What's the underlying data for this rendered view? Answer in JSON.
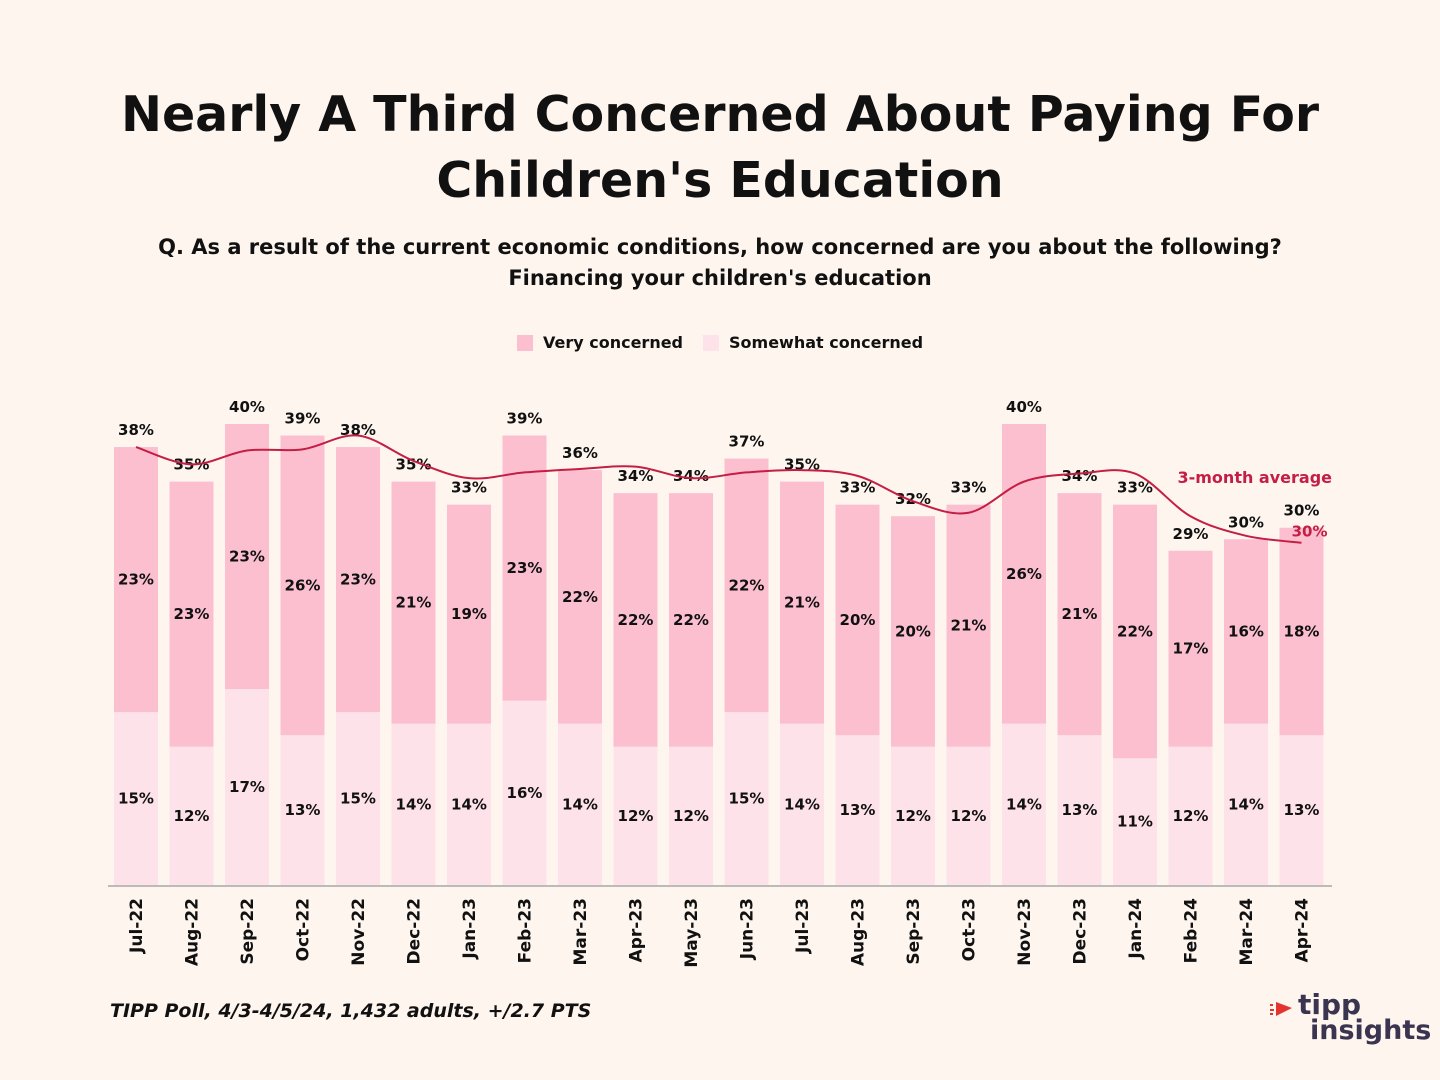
{
  "title_line1": "Nearly A Third Concerned About Paying For",
  "title_line2": "Children's Education",
  "question_line1": "Q. As a result of the current economic conditions, how concerned are you about the following?",
  "question_line2": "Financing your children's education",
  "footer": "TIPP Poll, 4/3-4/5/24, 1,432 adults, +/2.7 PTS",
  "logo": {
    "line1": "tipp",
    "line2": "insights"
  },
  "colors": {
    "very": "#fbbfd0",
    "somewhat": "#fde2ea",
    "line": "#c41e44",
    "text": "#111111",
    "axis": "#bbbbbb"
  },
  "chart_data": {
    "type": "bar",
    "stacked": true,
    "categories": [
      "Jul-22",
      "Aug-22",
      "Sep-22",
      "Oct-22",
      "Nov-22",
      "Dec-22",
      "Jan-23",
      "Feb-23",
      "Mar-23",
      "Apr-23",
      "May-23",
      "Jun-23",
      "Jul-23",
      "Aug-23",
      "Sep-23",
      "Oct-23",
      "Nov-23",
      "Dec-23",
      "Jan-24",
      "Feb-24",
      "Mar-24",
      "Apr-24"
    ],
    "series": [
      {
        "name": "Somewhat concerned",
        "values": [
          15,
          12,
          17,
          13,
          15,
          14,
          14,
          16,
          14,
          12,
          12,
          15,
          14,
          13,
          12,
          12,
          14,
          13,
          11,
          12,
          14,
          13
        ],
        "labels": [
          "15%",
          "12%",
          "17%",
          "13%",
          "15%",
          "14%",
          "14%",
          "16%",
          "14%",
          "12%",
          "12%",
          "15%",
          "14%",
          "13%",
          "12%",
          "12%",
          "14%",
          "13%",
          "11%",
          "12%",
          "14%",
          "13%"
        ]
      },
      {
        "name": "Very concerned",
        "values": [
          23,
          23,
          23,
          26,
          23,
          21,
          19,
          23,
          22,
          22,
          22,
          22,
          21,
          20,
          20,
          21,
          26,
          21,
          22,
          17,
          16,
          18
        ],
        "labels": [
          "23%",
          "23%",
          "23%",
          "26%",
          "23%",
          "21%",
          "19%",
          "23%",
          "22%",
          "22%",
          "22%",
          "22%",
          "21%",
          "20%",
          "20%",
          "21%",
          "26%",
          "21%",
          "22%",
          "17%",
          "16%",
          "18%"
        ]
      }
    ],
    "totals": [
      38,
      35,
      40,
      39,
      38,
      35,
      33,
      39,
      36,
      34,
      34,
      37,
      35,
      33,
      32,
      33,
      40,
      34,
      33,
      29,
      30,
      30
    ],
    "total_labels": [
      "38%",
      "35%",
      "40%",
      "39%",
      "38%",
      "35%",
      "33%",
      "39%",
      "36%",
      "34%",
      "34%",
      "37%",
      "35%",
      "33%",
      "32%",
      "33%",
      "40%",
      "34%",
      "33%",
      "29%",
      "30%",
      "30%"
    ],
    "line": {
      "name": "3-month average",
      "values": [
        38,
        36.5,
        37.7,
        37.8,
        39,
        36.8,
        35.3,
        35.8,
        36.1,
        36.3,
        35.3,
        35.8,
        36,
        35.5,
        33.3,
        32.3,
        35,
        35.7,
        35.7,
        32,
        30.3,
        29.7
      ],
      "end_label": "30%"
    },
    "ylim": [
      0,
      40
    ],
    "legend": "top-center"
  }
}
